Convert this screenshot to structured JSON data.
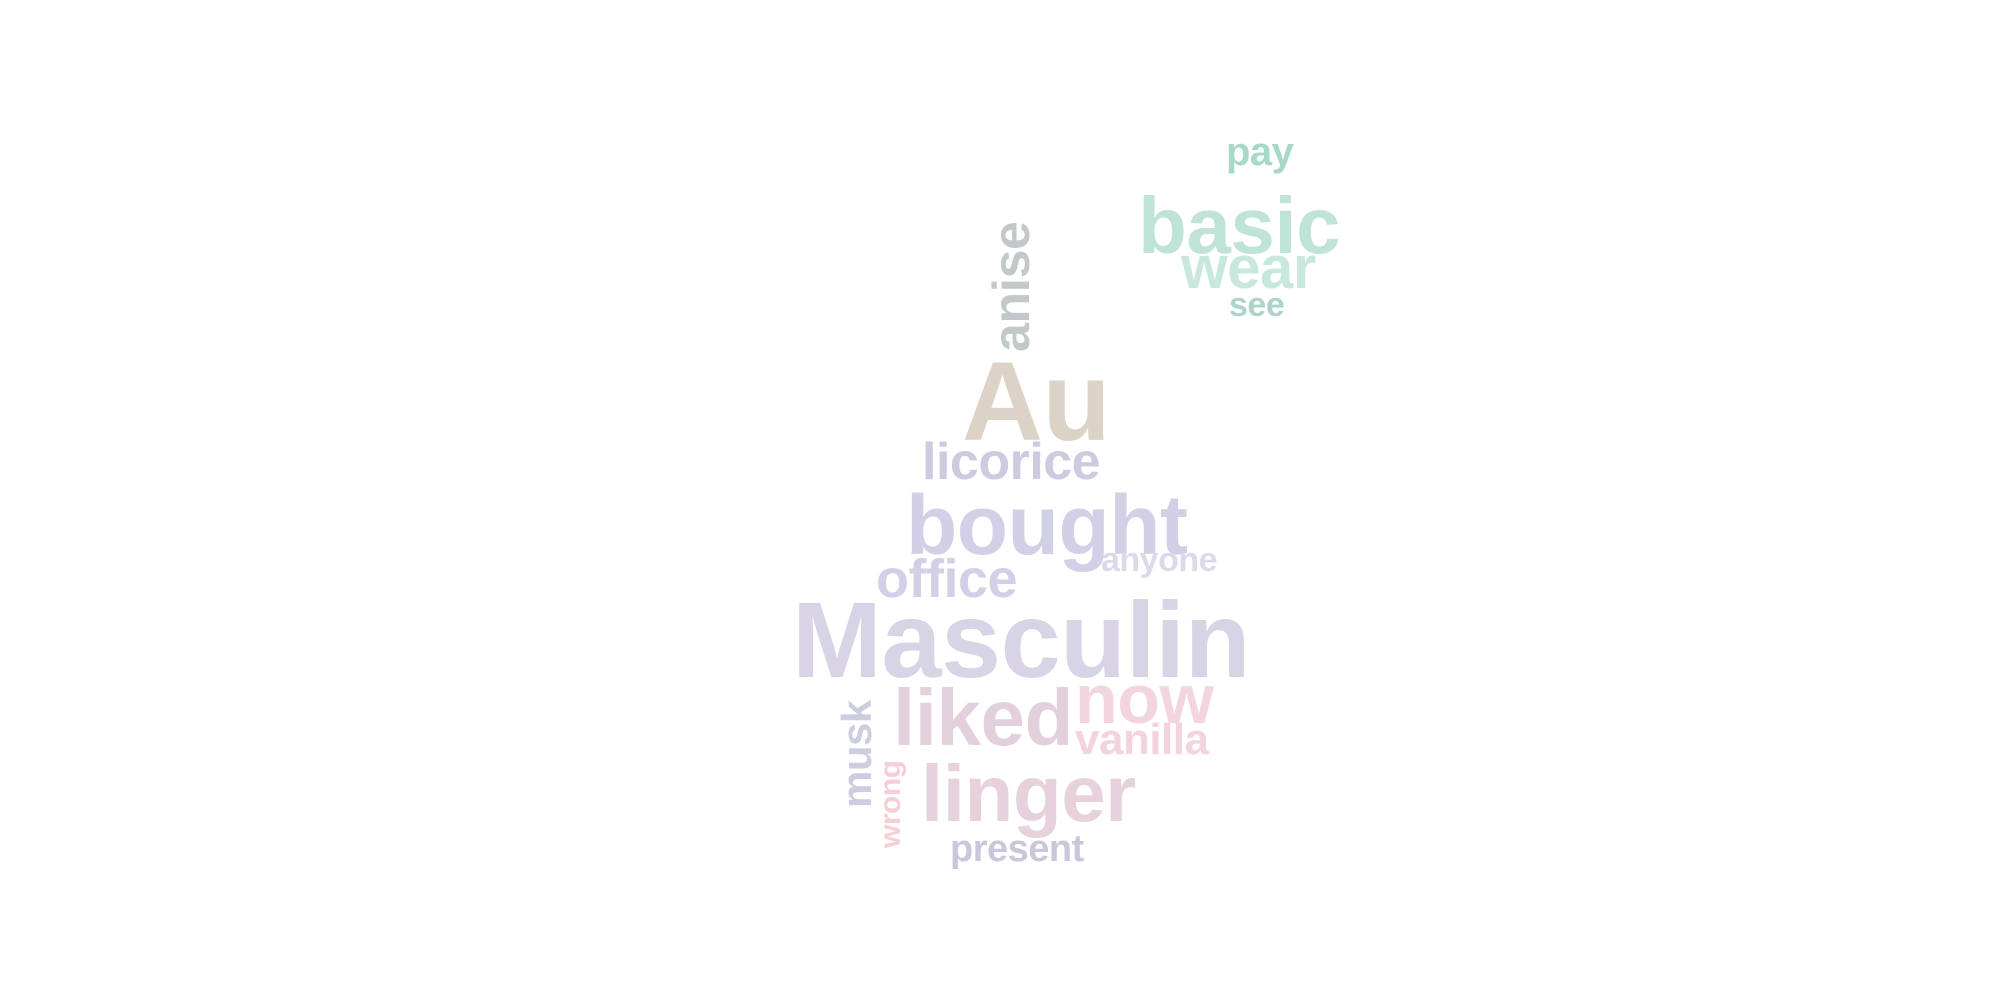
{
  "words": {
    "pay": {
      "text": "pay",
      "color": "#a8d8c6"
    },
    "basic": {
      "text": "basic",
      "color": "#bfe4d6"
    },
    "wear": {
      "text": "wear",
      "color": "#c8e8df"
    },
    "see": {
      "text": "see",
      "color": "#acd4ca"
    },
    "anise": {
      "text": "anise",
      "color": "#c3c8ca"
    },
    "au": {
      "text": "Au",
      "color": "#ddd2c6"
    },
    "licorice": {
      "text": "licorice",
      "color": "#cdcbe0"
    },
    "bought": {
      "text": "bought",
      "color": "#d2d0e6"
    },
    "anyone": {
      "text": "anyone",
      "color": "#dcdaea"
    },
    "office": {
      "text": "office",
      "color": "#d2d0e6"
    },
    "masculin": {
      "text": "Masculin",
      "color": "#d8d4e6"
    },
    "musk": {
      "text": "musk",
      "color": "#cdcde0"
    },
    "liked": {
      "text": "liked",
      "color": "#e2d0dc"
    },
    "now": {
      "text": "now",
      "color": "#f3d5de"
    },
    "vanilla": {
      "text": "vanilla",
      "color": "#f3d3dc"
    },
    "wrong": {
      "text": "wrong",
      "color": "#f6cfd6"
    },
    "linger": {
      "text": "linger",
      "color": "#e6d1dc"
    },
    "present": {
      "text": "present",
      "color": "#c9c7db"
    }
  }
}
